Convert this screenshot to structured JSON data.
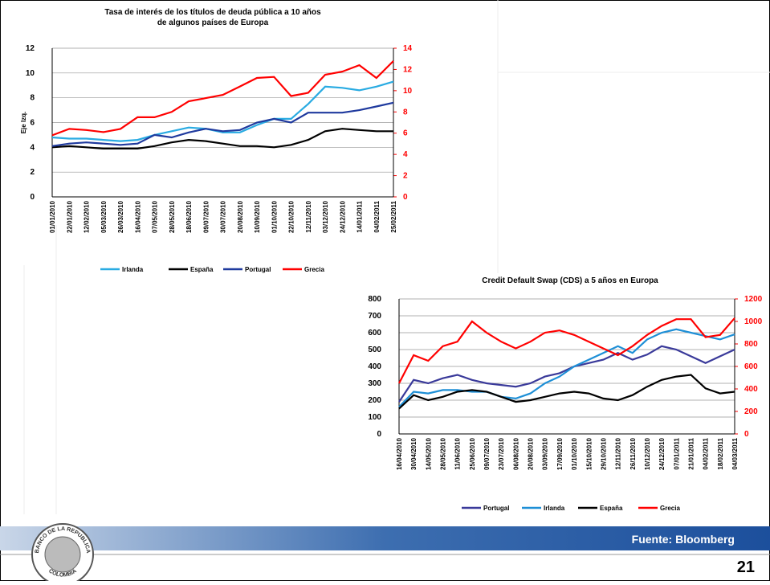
{
  "chart_data": [
    {
      "type": "line",
      "title": "Tasa de interés de los títulos de deuda pública a 10 años de algunos países de Europa",
      "ylabel": "Eje Izq.",
      "categories": [
        "01/01/2010",
        "22/01/2010",
        "12/02/2010",
        "05/03/2010",
        "26/03/2010",
        "16/04/2010",
        "07/05/2010",
        "28/05/2010",
        "18/06/2010",
        "09/07/2010",
        "30/07/2010",
        "20/08/2010",
        "10/09/2010",
        "01/10/2010",
        "22/10/2010",
        "12/11/2010",
        "03/12/2010",
        "24/12/2010",
        "14/01/2011",
        "04/02/2011",
        "25/02/2011"
      ],
      "ylim": [
        0,
        12
      ],
      "yticks": [
        0,
        2,
        4,
        6,
        8,
        10,
        12
      ],
      "y2lim": [
        0,
        14
      ],
      "y2ticks": [
        0,
        2,
        4,
        6,
        8,
        10,
        12,
        14
      ],
      "y2color": "#ff0000",
      "grid": true,
      "series": [
        {
          "name": "Irlanda",
          "color": "#29abe2",
          "values": [
            4.8,
            4.7,
            4.7,
            4.6,
            4.5,
            4.6,
            5.0,
            5.3,
            5.6,
            5.5,
            5.2,
            5.2,
            5.8,
            6.3,
            6.3,
            7.5,
            8.9,
            8.8,
            8.6,
            8.9,
            9.3
          ]
        },
        {
          "name": "España",
          "color": "#000000",
          "values": [
            4.0,
            4.1,
            4.0,
            3.9,
            3.9,
            3.9,
            4.1,
            4.4,
            4.6,
            4.5,
            4.3,
            4.1,
            4.1,
            4.0,
            4.2,
            4.6,
            5.3,
            5.5,
            5.4,
            5.3,
            5.3
          ]
        },
        {
          "name": "Portugal",
          "color": "#1f3a9e",
          "values": [
            4.1,
            4.3,
            4.4,
            4.3,
            4.2,
            4.3,
            5.0,
            4.8,
            5.2,
            5.5,
            5.3,
            5.4,
            6.0,
            6.3,
            6.0,
            6.8,
            6.8,
            6.8,
            7.0,
            7.3,
            7.6
          ]
        },
        {
          "name": "Grecia",
          "color": "#ff0000",
          "axis": "y2",
          "values": [
            5.8,
            6.4,
            6.3,
            6.1,
            6.4,
            7.5,
            7.5,
            8.0,
            9.0,
            9.3,
            9.6,
            10.4,
            11.2,
            11.3,
            9.5,
            9.8,
            11.5,
            11.8,
            12.4,
            11.2,
            12.8
          ]
        }
      ]
    },
    {
      "type": "line",
      "title": "Credit Default Swap (CDS) a 5 años en Europa",
      "categories": [
        "16/04/2010",
        "30/04/2010",
        "14/05/2010",
        "28/05/2010",
        "11/06/2010",
        "25/06/2010",
        "09/07/2010",
        "23/07/2010",
        "06/08/2010",
        "20/08/2010",
        "03/09/2010",
        "17/09/2010",
        "01/10/2010",
        "15/10/2010",
        "29/10/2010",
        "12/11/2010",
        "26/11/2010",
        "10/12/2010",
        "24/12/2010",
        "07/01/2011",
        "21/01/2011",
        "04/02/2011",
        "18/02/2011",
        "04/03/2011"
      ],
      "ylim": [
        0,
        800
      ],
      "yticks": [
        0,
        100,
        200,
        300,
        400,
        500,
        600,
        700,
        800
      ],
      "y2lim": [
        0,
        1200
      ],
      "y2ticks": [
        0,
        200,
        400,
        600,
        800,
        1000,
        1200
      ],
      "y2color": "#ff0000",
      "grid": true,
      "series": [
        {
          "name": "Portugal",
          "color": "#3a3a9a",
          "values": [
            190,
            320,
            300,
            330,
            350,
            320,
            300,
            290,
            280,
            300,
            340,
            360,
            400,
            420,
            440,
            480,
            440,
            470,
            520,
            500,
            460,
            420,
            460,
            500
          ]
        },
        {
          "name": "Irlanda",
          "color": "#1e8fd6",
          "values": [
            160,
            250,
            240,
            260,
            260,
            250,
            250,
            220,
            210,
            240,
            300,
            340,
            400,
            440,
            480,
            520,
            480,
            560,
            600,
            620,
            600,
            580,
            560,
            590
          ]
        },
        {
          "name": "España",
          "color": "#000000",
          "values": [
            150,
            230,
            200,
            220,
            250,
            260,
            250,
            220,
            190,
            200,
            220,
            240,
            250,
            240,
            210,
            200,
            230,
            280,
            320,
            340,
            350,
            270,
            240,
            250
          ]
        },
        {
          "name": "Grecia",
          "color": "#ff0000",
          "axis": "y2",
          "values": [
            450,
            700,
            650,
            780,
            820,
            1000,
            900,
            820,
            760,
            820,
            900,
            920,
            880,
            820,
            760,
            700,
            780,
            880,
            960,
            1020,
            1020,
            860,
            880,
            1030
          ]
        }
      ]
    }
  ],
  "logo": {
    "top": "BANCO DE LA REPUBLICA",
    "bottom": "COLOMBIA"
  },
  "footer": {
    "source": "Fuente: Bloomberg",
    "page_number": 21
  }
}
